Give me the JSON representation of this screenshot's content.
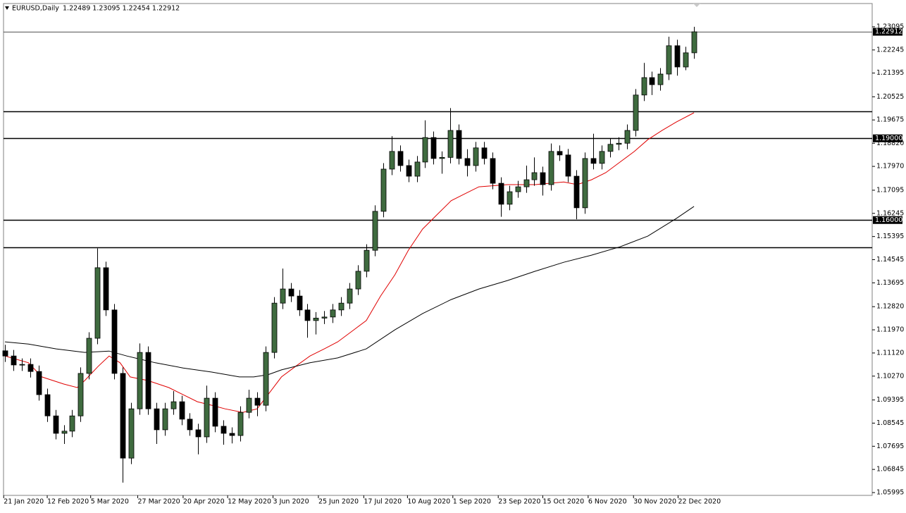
{
  "chart_data": {
    "type": "candlestick",
    "title": "EURUSD,Daily",
    "subtitle": "1.22489 1.23095 1.22454 1.22912",
    "up_color": "#3f6b3f",
    "down_color": "#000000",
    "xlim": [
      -0.17,
      103.2
    ],
    "ylim": [
      1.05892,
      1.23923
    ],
    "xticks": [
      {
        "value": -0.15,
        "label": "21 Jan 2020"
      },
      {
        "value": 5.03,
        "label": "12 Feb 2020"
      },
      {
        "value": 10.2,
        "label": "5 Mar 2020"
      },
      {
        "value": 15.8,
        "label": "27 Mar 2020"
      },
      {
        "value": 21.2,
        "label": "20 Apr 2020"
      },
      {
        "value": 26.5,
        "label": "12 May 2020"
      },
      {
        "value": 31.9,
        "label": "3 Jun 2020"
      },
      {
        "value": 37.3,
        "label": "25 Jun 2020"
      },
      {
        "value": 42.7,
        "label": "17 Jul 2020"
      },
      {
        "value": 47.9,
        "label": "10 Aug 2020"
      },
      {
        "value": 53.3,
        "label": "1 Sep 2020"
      },
      {
        "value": 58.7,
        "label": "23 Sep 2020"
      },
      {
        "value": 64.0,
        "label": "15 Oct 2020"
      },
      {
        "value": 69.4,
        "label": "6 Nov 2020"
      },
      {
        "value": 74.8,
        "label": "30 Nov 2020"
      },
      {
        "value": 80.1,
        "label": "22 Dec 2020"
      }
    ],
    "yticks": [
      1.23095,
      1.22245,
      1.21395,
      1.20525,
      1.19675,
      {
        "value": 1.1882,
        "label": "1.18820"
      },
      {
        "value": 1.1797,
        "label": "1.17970"
      },
      1.17095,
      1.16245,
      1.15395,
      1.14545,
      1.13695,
      {
        "value": 1.1282,
        "label": "1.12820"
      },
      {
        "value": 1.1197,
        "label": "1.11970"
      },
      {
        "value": 1.1112,
        "label": "1.11120"
      },
      {
        "value": 1.1027,
        "label": "1.10270"
      },
      1.09395,
      1.08545,
      1.07695,
      1.06845,
      1.05995
    ],
    "x": [
      0,
      1,
      2,
      3,
      4,
      5,
      6,
      7,
      8,
      9,
      10,
      11,
      12,
      13,
      14,
      15,
      16,
      17,
      18,
      19,
      20,
      21,
      22,
      23,
      24,
      25,
      26,
      27,
      28,
      29,
      30,
      31,
      32,
      33,
      34,
      35,
      36,
      37,
      38,
      39,
      40,
      41,
      42,
      43,
      44,
      45,
      46,
      47,
      48,
      49,
      50,
      51,
      52,
      53,
      54,
      55,
      56,
      57,
      58,
      59,
      60,
      61,
      62,
      63,
      64,
      65,
      66,
      67,
      68,
      69,
      70,
      71,
      72,
      73,
      74,
      75,
      76,
      77,
      78,
      79,
      80,
      81,
      82
    ],
    "open": [
      1.112,
      1.1101,
      1.1068,
      1.107,
      1.1044,
      1.0959,
      1.0881,
      1.0817,
      1.0825,
      1.0881,
      1.1037,
      1.1166,
      1.1425,
      1.127,
      1.1037,
      1.0726,
      1.0907,
      1.1114,
      1.0907,
      1.083,
      1.0907,
      1.0933,
      1.0869,
      1.083,
      1.0804,
      1.0946,
      1.0843,
      1.0817,
      1.0809,
      1.0894,
      1.0946,
      1.092,
      1.1114,
      1.1295,
      1.1347,
      1.1321,
      1.127,
      1.1231,
      1.124,
      1.1244,
      1.127,
      1.1295,
      1.1347,
      1.1412,
      1.1489,
      1.1632,
      1.1787,
      1.1852,
      1.18,
      1.1761,
      1.1813,
      1.1903,
      1.1826,
      1.183,
      1.1929,
      1.1826,
      1.18,
      1.1865,
      1.1826,
      1.1735,
      1.1658,
      1.1704,
      1.1722,
      1.1748,
      1.1774,
      1.173,
      1.1852,
      1.1839,
      1.1761,
      1.1645,
      1.1826,
      1.1808,
      1.1852,
      1.1878,
      1.1882,
      1.1929,
      1.2059,
      1.2123,
      1.2097,
      1.2136,
      1.224,
      1.2162,
      1.2214
    ],
    "high": [
      1.1142,
      1.1123,
      1.1092,
      1.1092,
      1.1066,
      1.0981,
      1.0903,
      1.0847,
      1.0903,
      1.1059,
      1.1188,
      1.1496,
      1.1447,
      1.1292,
      1.1059,
      1.0929,
      1.1147,
      1.1136,
      1.0929,
      1.0929,
      1.0972,
      1.0955,
      1.0891,
      1.0852,
      1.0992,
      1.0968,
      1.0865,
      1.0839,
      1.0916,
      1.0977,
      1.0968,
      1.1136,
      1.1317,
      1.1422,
      1.1369,
      1.1343,
      1.1292,
      1.1262,
      1.1266,
      1.1292,
      1.1317,
      1.1369,
      1.1434,
      1.1511,
      1.1654,
      1.1809,
      1.1908,
      1.1874,
      1.1822,
      1.1835,
      1.1966,
      1.1925,
      1.1852,
      1.2011,
      1.1951,
      1.186,
      1.1887,
      1.1887,
      1.1848,
      1.1757,
      1.1726,
      1.1744,
      1.18,
      1.183,
      1.1796,
      1.1881,
      1.1874,
      1.1861,
      1.1783,
      1.1848,
      1.1917,
      1.1874,
      1.19,
      1.1904,
      1.1951,
      1.2081,
      1.2177,
      1.2145,
      1.2158,
      1.2273,
      1.2262,
      1.2236,
      1.23095
    ],
    "low": [
      1.1079,
      1.1046,
      1.1046,
      1.1022,
      1.0937,
      1.0859,
      1.0795,
      1.0778,
      1.0803,
      1.0859,
      1.1015,
      1.1144,
      1.1248,
      1.1015,
      1.0636,
      1.0704,
      1.0885,
      1.0885,
      1.0778,
      1.0808,
      1.0885,
      1.0847,
      1.0808,
      1.074,
      1.0782,
      1.0821,
      1.0775,
      1.078,
      1.0787,
      1.0872,
      1.088,
      1.0898,
      1.1092,
      1.1273,
      1.1299,
      1.1248,
      1.1168,
      1.118,
      1.1218,
      1.1222,
      1.1248,
      1.1273,
      1.1325,
      1.139,
      1.1467,
      1.161,
      1.1765,
      1.1778,
      1.1739,
      1.1739,
      1.1791,
      1.1804,
      1.177,
      1.1808,
      1.1804,
      1.176,
      1.1778,
      1.1804,
      1.1713,
      1.1612,
      1.1636,
      1.1682,
      1.17,
      1.1726,
      1.169,
      1.1708,
      1.1817,
      1.1739,
      1.1603,
      1.1623,
      1.1786,
      1.1786,
      1.183,
      1.1856,
      1.186,
      1.1907,
      1.2037,
      1.2059,
      1.2075,
      1.2114,
      1.213,
      1.215,
      1.2192
    ],
    "close": [
      1.1101,
      1.1068,
      1.107,
      1.1044,
      1.0959,
      1.0881,
      1.0817,
      1.0825,
      1.0881,
      1.1037,
      1.1166,
      1.1425,
      1.127,
      1.1037,
      1.0726,
      1.0907,
      1.1114,
      1.0907,
      1.083,
      1.0907,
      1.0933,
      1.0869,
      1.083,
      1.0804,
      1.0946,
      1.0843,
      1.0817,
      1.0809,
      1.0894,
      1.0946,
      1.092,
      1.1114,
      1.1295,
      1.1347,
      1.1321,
      1.127,
      1.1231,
      1.124,
      1.1244,
      1.127,
      1.1295,
      1.1347,
      1.1412,
      1.1489,
      1.1632,
      1.1787,
      1.1852,
      1.18,
      1.1761,
      1.1813,
      1.1903,
      1.1826,
      1.183,
      1.1929,
      1.1826,
      1.18,
      1.1865,
      1.1826,
      1.1735,
      1.1658,
      1.1704,
      1.1722,
      1.1748,
      1.1774,
      1.173,
      1.1852,
      1.1839,
      1.1761,
      1.1645,
      1.1826,
      1.1808,
      1.1852,
      1.1878,
      1.1882,
      1.1929,
      1.2059,
      1.2123,
      1.2097,
      1.2136,
      1.224,
      1.2162,
      1.2214,
      1.22912
    ],
    "moving_averages": [
      {
        "color": "#e00000",
        "x": [
          0,
          2.8,
          4.4,
          7.0,
          8.6,
          9.5,
          11.1,
          12.4,
          13.7,
          14.9,
          17.0,
          19.5,
          21.2,
          22.9,
          24.6,
          26.2,
          28.3,
          30.0,
          31.3,
          32.9,
          34.6,
          36.3,
          38.0,
          39.6,
          41.3,
          43.0,
          44.7,
          46.4,
          48.0,
          49.7,
          51.4,
          53.1,
          54.7,
          56.4,
          59.8,
          63.1,
          66.5,
          68.1,
          69.8,
          71.5,
          73.2,
          74.9,
          76.5,
          78.2,
          79.9,
          82.0
        ],
        "values": [
          1.1101,
          1.1076,
          1.1024,
          1.0998,
          1.0985,
          1.1011,
          1.1063,
          1.1101,
          1.1076,
          1.1024,
          1.1011,
          1.0985,
          1.0959,
          1.0933,
          1.092,
          1.0907,
          1.0894,
          1.0907,
          1.0959,
          1.1024,
          1.1063,
          1.1101,
          1.1127,
          1.1153,
          1.1192,
          1.1231,
          1.1321,
          1.1399,
          1.1489,
          1.1567,
          1.1619,
          1.1671,
          1.1696,
          1.1722,
          1.173,
          1.173,
          1.174,
          1.173,
          1.1748,
          1.1774,
          1.1813,
          1.1852,
          1.1895,
          1.1929,
          1.196,
          1.1994
        ]
      },
      {
        "color": "#000000",
        "x": [
          0,
          2.8,
          6.1,
          9.5,
          12.4,
          14.5,
          17.9,
          21.2,
          24.6,
          27.9,
          29.6,
          31.3,
          32.9,
          36.3,
          39.6,
          43.0,
          46.4,
          49.7,
          53.1,
          56.4,
          59.8,
          63.1,
          66.5,
          69.8,
          73.2,
          76.5,
          79.9,
          82.0
        ],
        "values": [
          1.1153,
          1.1145,
          1.1127,
          1.1114,
          1.1119,
          1.1101,
          1.1076,
          1.1057,
          1.1042,
          1.1024,
          1.1024,
          1.1032,
          1.105,
          1.1076,
          1.1094,
          1.1127,
          1.1197,
          1.1257,
          1.1308,
          1.1347,
          1.1378,
          1.1412,
          1.1445,
          1.1471,
          1.1502,
          1.1541,
          1.1606,
          1.165
        ]
      }
    ],
    "levels": [
      1.22912,
      1.2,
      1.19,
      1.16,
      1.15
    ],
    "price_tags": [
      {
        "value": 1.22912,
        "label": "1.22912"
      },
      {
        "value": 1.19,
        "label": "1.19000"
      },
      {
        "value": 1.16,
        "label": "1.16000"
      }
    ]
  }
}
